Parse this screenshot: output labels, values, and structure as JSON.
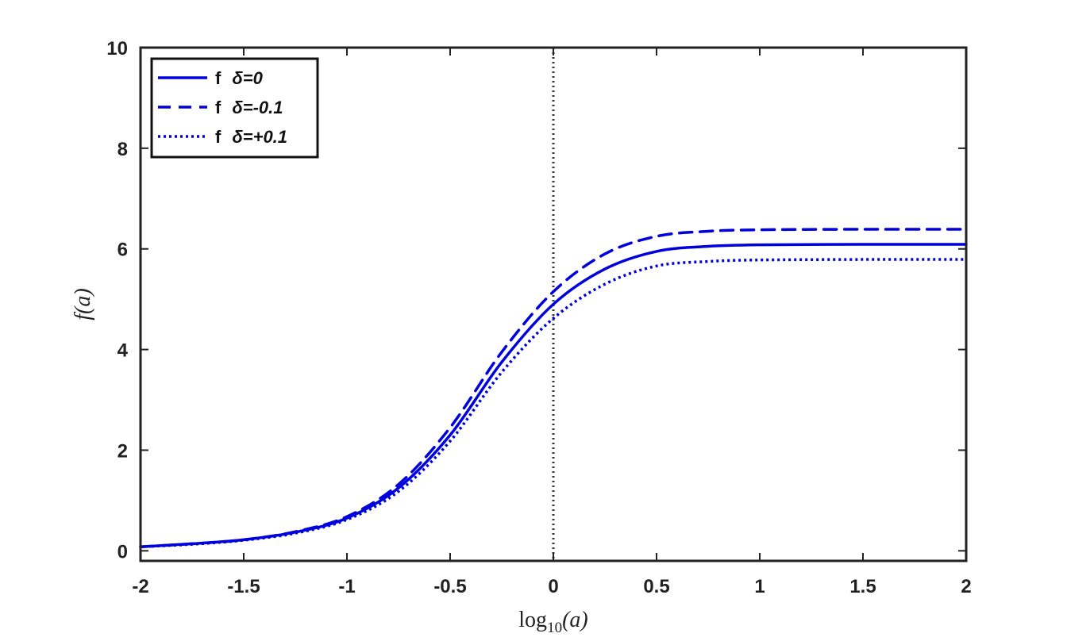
{
  "chart_data": {
    "type": "line",
    "xlabel_base": "log",
    "xlabel_sub": "10",
    "xlabel_arg": "(a)",
    "ylabel": "f(a)",
    "xlim": [
      -2,
      2
    ],
    "ylim": [
      0,
      10
    ],
    "xticks": [
      "-2",
      "-1.5",
      "-1",
      "-0.5",
      "0",
      "0.5",
      "1",
      "1.5",
      "2"
    ],
    "yticks": [
      "0",
      "2",
      "4",
      "6",
      "8",
      "10"
    ],
    "grid": false,
    "legend_position": "top-left",
    "vertical_reference_line": {
      "x": 0,
      "style": "dotted",
      "color": "#333333"
    },
    "x": [
      -2.0,
      -1.75,
      -1.5,
      -1.25,
      -1.0,
      -0.75,
      -0.5,
      -0.25,
      0.0,
      0.25,
      0.5,
      0.75,
      1.0,
      1.5,
      2.0
    ],
    "series": [
      {
        "name": "f  δ=0",
        "legend_f": "f",
        "legend_delta": "δ=0",
        "style": "solid",
        "color": "#0000dd",
        "values": [
          0.08,
          0.14,
          0.22,
          0.37,
          0.65,
          1.25,
          2.3,
          3.75,
          4.9,
          5.6,
          5.95,
          6.05,
          6.08,
          6.09,
          6.09
        ]
      },
      {
        "name": "f  δ=-0.1",
        "legend_f": "f",
        "legend_delta": "δ=-0.1",
        "style": "dashed",
        "color": "#0000dd",
        "values": [
          0.08,
          0.14,
          0.22,
          0.38,
          0.68,
          1.32,
          2.45,
          3.95,
          5.15,
          5.9,
          6.25,
          6.35,
          6.38,
          6.39,
          6.39
        ]
      },
      {
        "name": "f  δ=+0.1",
        "legend_f": "f",
        "legend_delta": "δ=+0.1",
        "style": "dotted",
        "color": "#0000dd",
        "values": [
          0.08,
          0.13,
          0.21,
          0.35,
          0.62,
          1.18,
          2.18,
          3.55,
          4.62,
          5.3,
          5.66,
          5.75,
          5.78,
          5.79,
          5.79
        ]
      }
    ]
  }
}
